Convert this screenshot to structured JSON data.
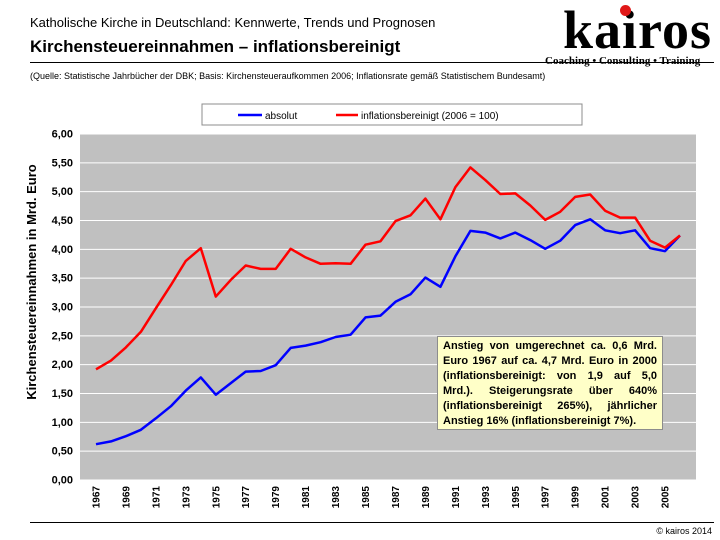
{
  "header": {
    "subtitle": "Katholische Kirche in Deutschland: Kennwerte, Trends und Prognosen",
    "title": "Kirchensteuereinnahmen – inflationsbereinigt",
    "logo": "kairos",
    "tagline": "Coaching • Consulting • Training",
    "source": "(Quelle: Statistische Jahrbücher der DBK; Basis: Kirchensteueraufkommen 2006; Inflationsrate gemäß Statistischem Bundesamt)"
  },
  "colors": {
    "absolut": "#0000ff",
    "inflation": "#ff0000",
    "plot_bg": "#c0c0c0",
    "accent": "#e01818"
  },
  "chart_data": {
    "type": "line",
    "title": "Kirchensteuereinnahmen – inflationsbereinigt",
    "xlabel": "",
    "ylabel": "Kirchensteuereinnahmen in Mrd. Euro",
    "ylim": [
      0,
      6
    ],
    "xlim": [
      1967,
      2006
    ],
    "grid": true,
    "legend_position": "top",
    "x_tick_labels": [
      "1967",
      "1969",
      "1971",
      "1973",
      "1975",
      "1977",
      "1979",
      "1981",
      "1983",
      "1985",
      "1987",
      "1989",
      "1991",
      "1993",
      "1995",
      "1997",
      "1999",
      "2001",
      "2003",
      "2005"
    ],
    "y_tick_labels": [
      "0,00",
      "0,50",
      "1,00",
      "1,50",
      "2,00",
      "2,50",
      "3,00",
      "3,50",
      "4,00",
      "4,50",
      "5,00",
      "5,50",
      "6,00"
    ],
    "x": [
      1967,
      1968,
      1969,
      1970,
      1971,
      1972,
      1973,
      1974,
      1975,
      1976,
      1977,
      1978,
      1979,
      1980,
      1981,
      1982,
      1983,
      1984,
      1985,
      1986,
      1987,
      1988,
      1989,
      1990,
      1991,
      1992,
      1993,
      1994,
      1995,
      1996,
      1997,
      1998,
      1999,
      2000,
      2001,
      2002,
      2003,
      2004,
      2005,
      2006
    ],
    "series": [
      {
        "name": "absolut",
        "values": [
          0.62,
          0.67,
          0.76,
          0.87,
          1.07,
          1.28,
          1.55,
          1.78,
          1.48,
          1.68,
          1.88,
          1.89,
          1.99,
          2.29,
          2.33,
          2.39,
          2.48,
          2.52,
          2.82,
          2.85,
          3.09,
          3.22,
          3.51,
          3.35,
          3.88,
          4.32,
          4.29,
          4.19,
          4.29,
          4.16,
          4.01,
          4.15,
          4.42,
          4.52,
          4.33,
          4.28,
          4.33,
          4.02,
          3.97,
          4.24
        ]
      },
      {
        "name": "inflationsbereinigt (2006 = 100)",
        "values": [
          1.92,
          2.07,
          2.3,
          2.57,
          2.98,
          3.38,
          3.8,
          4.02,
          3.18,
          3.47,
          3.72,
          3.66,
          3.66,
          4.01,
          3.86,
          3.75,
          3.76,
          3.75,
          4.08,
          4.14,
          4.49,
          4.59,
          4.88,
          4.52,
          5.08,
          5.42,
          5.2,
          4.96,
          4.97,
          4.76,
          4.51,
          4.65,
          4.91,
          4.95,
          4.67,
          4.55,
          4.55,
          4.15,
          4.03,
          4.24
        ]
      }
    ]
  },
  "annotation": "Anstieg von umgerechnet ca. 0,6 Mrd. Euro 1967 auf ca. 4,7 Mrd. Euro in 2000 (inflationsbereinigt: von 1,9 auf 5,0 Mrd.). Steigerungsrate über 640% (inflationsbereinigt 265%), jährlicher Anstieg 16% (inflationsbereinigt 7%).",
  "footer": {
    "copyright": "© kairos 2014"
  }
}
